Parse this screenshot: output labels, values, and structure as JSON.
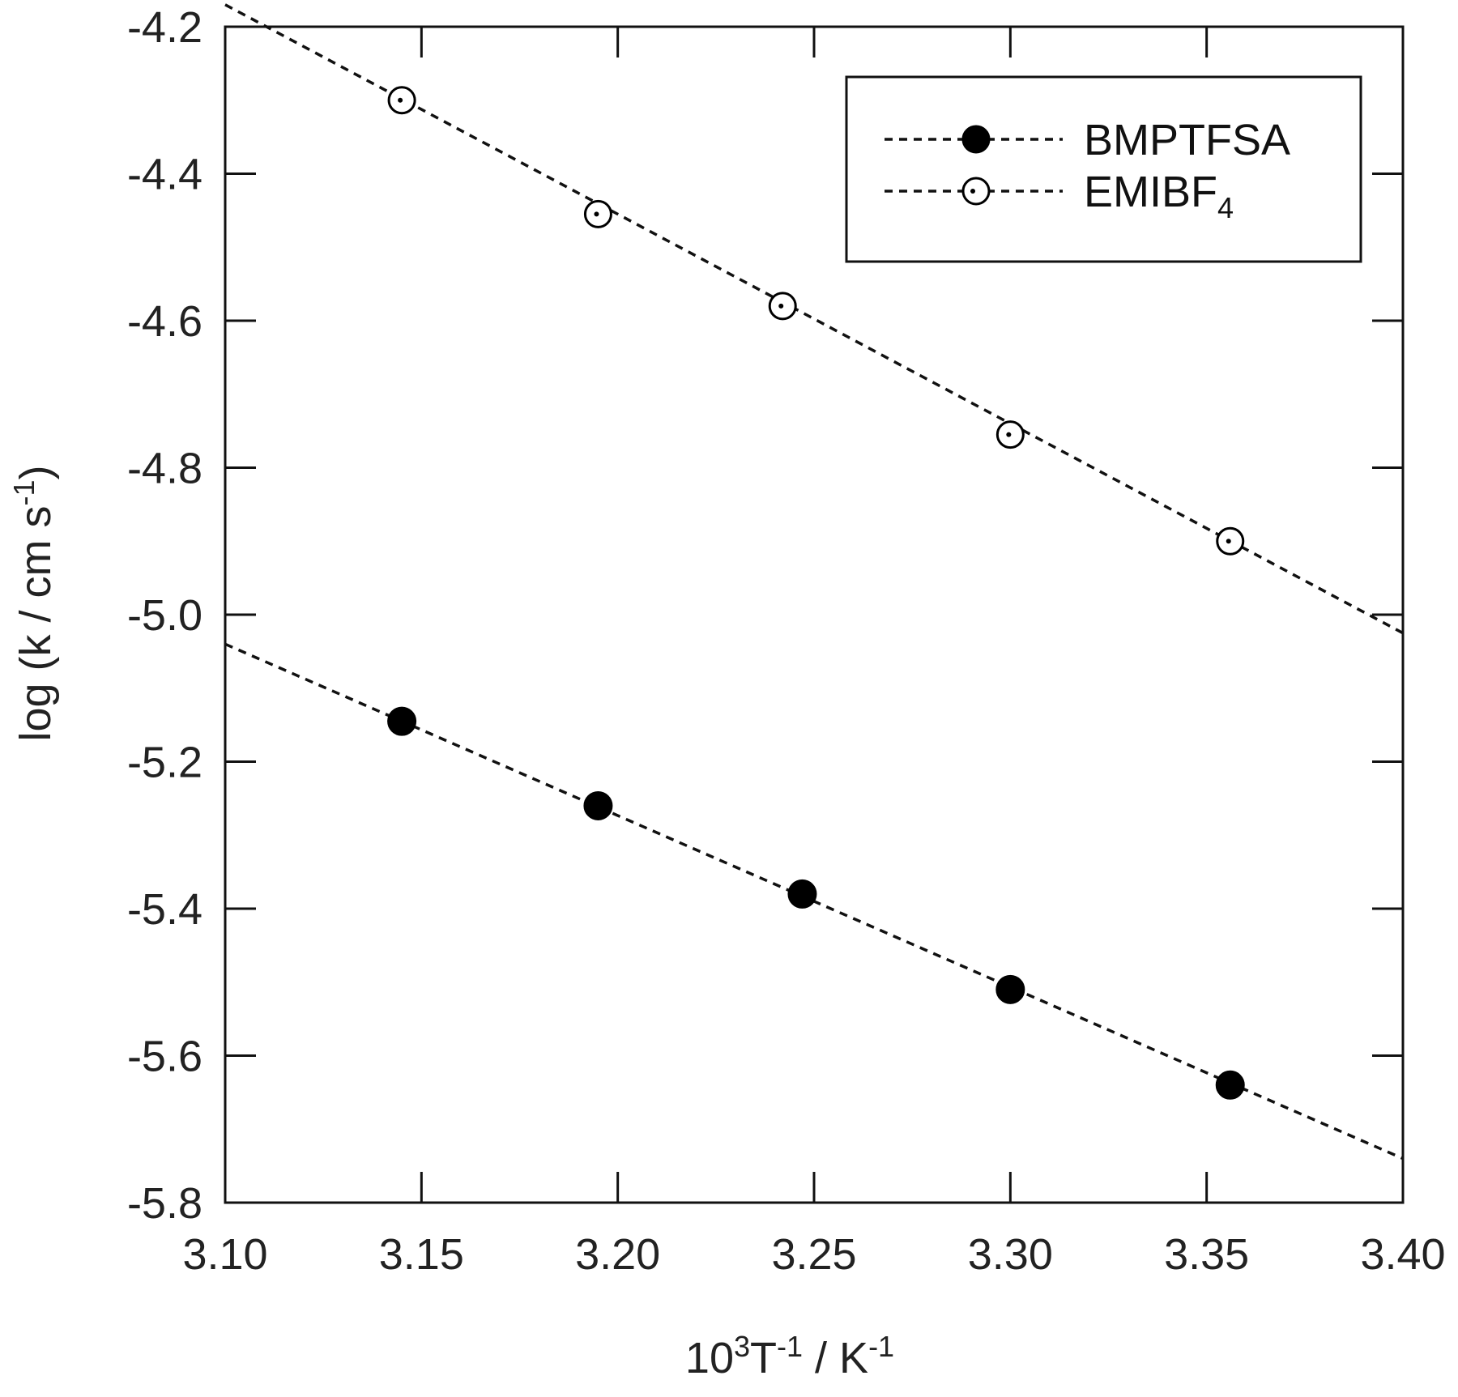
{
  "chart_data": {
    "type": "scatter",
    "title": "",
    "xlabel": {
      "base": "10",
      "sup1": "3",
      "mid": "T",
      "sup2": "-1",
      "unit": " / K",
      "sup3": "-1"
    },
    "ylabel": {
      "main": "log (k / cm s",
      "sup": "-1",
      "end": ")"
    },
    "xlim": [
      3.1,
      3.4
    ],
    "ylim": [
      -5.8,
      -4.2
    ],
    "x_ticks": [
      3.1,
      3.15,
      3.2,
      3.25,
      3.3,
      3.35,
      3.4
    ],
    "x_tick_labels": [
      "3.10",
      "3.15",
      "3.20",
      "3.25",
      "3.30",
      "3.35",
      "3.40"
    ],
    "y_ticks": [
      -4.2,
      -4.4,
      -4.6,
      -4.8,
      -5.0,
      -5.2,
      -5.4,
      -5.6,
      -5.8
    ],
    "y_tick_labels": [
      "-4.2",
      "-4.4",
      "-4.6",
      "-4.8",
      "-5.0",
      "-5.2",
      "-5.4",
      "-5.6",
      "-5.8"
    ],
    "grid": false,
    "legend_position": "top-right",
    "series": [
      {
        "name": "BMPTFSA",
        "marker": "filled-circle",
        "x": [
          3.145,
          3.195,
          3.247,
          3.3,
          3.356
        ],
        "y": [
          -5.145,
          -5.26,
          -5.38,
          -5.51,
          -5.64
        ],
        "fit": {
          "x": [
            3.1,
            3.4
          ],
          "y": [
            -5.04,
            -5.74
          ]
        }
      },
      {
        "name": "EMIBF",
        "name_sub": "4",
        "marker": "open-circle",
        "x": [
          3.145,
          3.195,
          3.242,
          3.3,
          3.356
        ],
        "y": [
          -4.3,
          -4.455,
          -4.58,
          -4.755,
          -4.9
        ],
        "fit": {
          "x": [
            3.1,
            3.4
          ],
          "y": [
            -4.17,
            -5.025
          ]
        }
      }
    ]
  }
}
